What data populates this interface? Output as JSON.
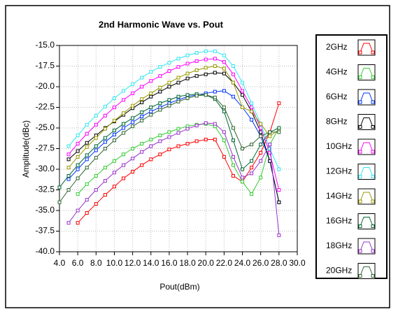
{
  "chart_data": {
    "type": "line",
    "title": "2nd Harmonic Wave vs. Pout",
    "x_label": "Pout(dBm)",
    "y_label": "Amplitude(dBc)",
    "x": [
      4,
      5,
      6,
      7,
      8,
      9,
      10,
      11,
      12,
      13,
      14,
      15,
      16,
      17,
      18,
      19,
      20,
      21,
      22,
      23,
      24,
      25,
      26,
      27,
      28
    ],
    "series": [
      {
        "name": "2GHz",
        "color": "#ff0000",
        "values": [
          null,
          null,
          -36.5,
          -35.3,
          -34.2,
          -33.1,
          -32.1,
          -31.1,
          -30.3,
          -29.5,
          -28.8,
          -28.2,
          -27.6,
          -27.2,
          -26.9,
          -26.6,
          -26.4,
          -26.4,
          -28.5,
          -30.8,
          -31.5,
          -29.8,
          -28.0,
          -25.5,
          -22.0
        ]
      },
      {
        "name": "4GHz",
        "color": "#33cc33",
        "values": [
          null,
          null,
          -33.0,
          -31.8,
          -30.8,
          -29.8,
          -29.0,
          -28.2,
          -27.5,
          -26.9,
          -26.4,
          -25.9,
          -25.5,
          -25.1,
          -24.8,
          -24.6,
          -24.5,
          -24.8,
          -26.5,
          -29.5,
          -31.5,
          -33.0,
          -31.0,
          -27.0,
          -25.0
        ]
      },
      {
        "name": "6GHz",
        "color": "#0033ff",
        "values": [
          null,
          -31.2,
          -30.0,
          -28.8,
          -27.7,
          -26.7,
          -25.8,
          -25.0,
          -24.3,
          -23.6,
          -23.0,
          -22.5,
          -22.0,
          -21.6,
          -21.2,
          -21.0,
          -20.8,
          -20.6,
          -20.5,
          -21.2,
          -22.5,
          -24.0,
          -26.0,
          -29.0,
          -34.0
        ]
      },
      {
        "name": "8GHz",
        "color": "#000000",
        "values": [
          null,
          -28.8,
          -27.8,
          -26.8,
          -25.9,
          -25.0,
          -24.2,
          -23.4,
          -22.6,
          -21.9,
          -21.2,
          -20.6,
          -20.0,
          -19.5,
          -19.0,
          -18.7,
          -18.5,
          -18.3,
          -18.4,
          -19.5,
          -21.0,
          -23.0,
          -25.5,
          -29.0,
          -34.0
        ]
      },
      {
        "name": "10GHz",
        "color": "#ff00ff",
        "values": [
          null,
          -28.2,
          -26.9,
          -25.7,
          -24.6,
          -23.5,
          -22.5,
          -21.6,
          -20.8,
          -20.0,
          -19.3,
          -18.7,
          -18.1,
          -17.6,
          -17.2,
          -16.9,
          -16.7,
          -16.6,
          -17.0,
          -18.5,
          -20.5,
          -22.5,
          -25.0,
          -28.0,
          -32.5
        ]
      },
      {
        "name": "12GHz",
        "color": "#33e6f0",
        "values": [
          null,
          -27.2,
          -25.9,
          -24.6,
          -23.5,
          -22.4,
          -21.4,
          -20.5,
          -19.7,
          -18.9,
          -18.2,
          -17.6,
          -17.1,
          -16.6,
          -16.2,
          -15.9,
          -15.7,
          -15.7,
          -16.2,
          -17.5,
          -19.5,
          -22.0,
          -24.5,
          -27.5,
          -30.0
        ]
      },
      {
        "name": "14GHz",
        "color": "#999900",
        "values": [
          null,
          -29.8,
          -28.5,
          -27.3,
          -26.2,
          -25.1,
          -24.1,
          -23.2,
          -22.3,
          -21.5,
          -20.8,
          -20.1,
          -19.5,
          -18.9,
          -18.4,
          -18.0,
          -17.7,
          -17.5,
          -17.8,
          -19.5,
          -22.5,
          -23.0,
          -24.5,
          -26.0,
          -25.2
        ]
      },
      {
        "name": "16GHz",
        "color": "#006633",
        "values": [
          -32.2,
          -30.8,
          -29.5,
          -28.3,
          -27.2,
          -26.2,
          -25.3,
          -24.5,
          -23.8,
          -23.1,
          -22.5,
          -22.0,
          -21.6,
          -21.2,
          -21.0,
          -20.9,
          -21.0,
          -21.5,
          -23.0,
          -26.5,
          -30.0,
          -29.0,
          -27.0,
          -25.5,
          -25.0
        ]
      },
      {
        "name": "18GHz",
        "color": "#9933cc",
        "values": [
          null,
          -36.5,
          -35.0,
          -33.7,
          -32.5,
          -31.4,
          -30.4,
          -29.5,
          -28.7,
          -27.9,
          -27.2,
          -26.6,
          -26.1,
          -25.6,
          -25.1,
          -24.7,
          -24.4,
          -24.5,
          -25.5,
          -28.5,
          -31.0,
          -30.5,
          -29.0,
          -27.0,
          -38.0
        ]
      },
      {
        "name": "20GHz",
        "color": "#336633",
        "values": [
          -34.0,
          -32.5,
          -31.1,
          -29.8,
          -28.6,
          -27.5,
          -26.5,
          -25.6,
          -24.8,
          -24.1,
          -23.4,
          -22.8,
          -22.3,
          -21.8,
          -21.4,
          -21.1,
          -21.0,
          -21.3,
          -22.5,
          -25.0,
          -27.5,
          -27.0,
          -26.0,
          -25.5,
          -25.5
        ]
      }
    ],
    "xlim": [
      4,
      30
    ],
    "xticks": [
      {
        "value": 4,
        "label": "4.0"
      },
      {
        "value": 6,
        "label": "6.0"
      },
      {
        "value": 8,
        "label": "8.0"
      },
      {
        "value": 10,
        "label": "10.0"
      },
      {
        "value": 12,
        "label": "12.0"
      },
      {
        "value": 14,
        "label": "14.0"
      },
      {
        "value": 16,
        "label": "16.0"
      },
      {
        "value": 18,
        "label": "18.0"
      },
      {
        "value": 20,
        "label": "20.0"
      },
      {
        "value": 22,
        "label": "22.0"
      },
      {
        "value": 24,
        "label": "24.0"
      },
      {
        "value": 26,
        "label": "26.0"
      },
      {
        "value": 28,
        "label": "28.0"
      },
      {
        "value": 30,
        "label": "30.0"
      }
    ],
    "ylim": [
      -40,
      -15
    ],
    "yticks": [
      {
        "value": -15,
        "label": "-15.0"
      },
      {
        "value": -17.5,
        "label": "-17.5"
      },
      {
        "value": -20,
        "label": "-20.0"
      },
      {
        "value": -22.5,
        "label": "-22.5"
      },
      {
        "value": -25,
        "label": "-25.0"
      },
      {
        "value": -27.5,
        "label": "-27.5"
      },
      {
        "value": -30,
        "label": "-30.0"
      },
      {
        "value": -32.5,
        "label": "-32.5"
      },
      {
        "value": -35,
        "label": "-35.0"
      },
      {
        "value": -37.5,
        "label": "-37.5"
      },
      {
        "value": -40,
        "label": "-40.0"
      }
    ],
    "grid": true,
    "legend": "right"
  }
}
